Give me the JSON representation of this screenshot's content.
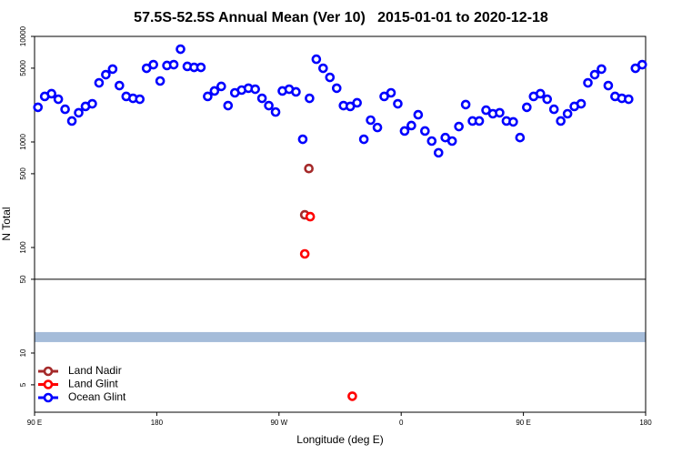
{
  "chart_data": {
    "type": "scatter",
    "title": "57.5S-52.5S Annual Mean (Ver 10)   2015-01-01 to 2020-12-18",
    "xlabel": "Longitude (deg E)",
    "ylabel": "N Total",
    "log_y": true,
    "xlim": [
      90,
      540
    ],
    "ylim": [
      2.75,
      10000
    ],
    "xticks": [
      {
        "value": 90,
        "label": "90 E"
      },
      {
        "value": 180,
        "label": "180"
      },
      {
        "value": 270,
        "label": "90 W"
      },
      {
        "value": 360,
        "label": "0"
      },
      {
        "value": 450,
        "label": "90 E"
      },
      {
        "value": 540,
        "label": "180"
      }
    ],
    "yticks": [
      5,
      10,
      50,
      100,
      500,
      1000,
      5000,
      10000
    ],
    "hline": 50,
    "band": [
      12.7,
      15.8
    ],
    "band_color": "#a5bcd9",
    "legend": "lower left",
    "series": [
      {
        "name": "Land Nadir",
        "color": "#a52a2a",
        "x": [
          292,
          289
        ],
        "values": [
          560,
          204
        ]
      },
      {
        "name": "Land Glint",
        "color": "#ff0000",
        "x": [
          293,
          289,
          324
        ],
        "values": [
          196,
          87,
          3.9
        ]
      },
      {
        "name": "Ocean Glint",
        "color": "#0000ff",
        "x": [
          92.5,
          97.5,
          102.5,
          107.5,
          112.5,
          117.5,
          122.5,
          127.5,
          132.5,
          137.5,
          142.5,
          147.5,
          152.5,
          157.5,
          162.5,
          167.5,
          172.5,
          177.5,
          182.5,
          187.5,
          192.5,
          197.5,
          202.5,
          207.5,
          212.5,
          217.5,
          222.5,
          227.5,
          232.5,
          237.5,
          242.5,
          247.5,
          252.5,
          257.5,
          262.5,
          267.5,
          272.5,
          277.5,
          282.5,
          287.5,
          292.5,
          297.5,
          302.5,
          307.5,
          312.5,
          317.5,
          322.5,
          327.5,
          332.5,
          337.5,
          342.5,
          347.5,
          352.5,
          357.5,
          362.5,
          367.5,
          372.5,
          377.5,
          382.5,
          387.5,
          392.5,
          397.5,
          402.5,
          407.5,
          412.5,
          417.5,
          422.5,
          427.5,
          432.5,
          437.5,
          442.5,
          447.5,
          452.5,
          457.5,
          462.5,
          467.5,
          472.5,
          477.5,
          482.5,
          487.5,
          492.5,
          497.5,
          502.5,
          507.5,
          512.5,
          517.5,
          522.5,
          527.5,
          532.5,
          537.5
        ],
        "values": [
          2130,
          2700,
          2865,
          2540,
          2040,
          1580,
          1890,
          2170,
          2300,
          3630,
          4340,
          4900,
          3420,
          2700,
          2590,
          2540,
          4990,
          5400,
          3780,
          5300,
          5400,
          7570,
          5200,
          5090,
          5090,
          2700,
          3040,
          3360,
          2210,
          2920,
          3100,
          3230,
          3160,
          2590,
          2210,
          1920,
          3040,
          3160,
          2980,
          1060,
          2590,
          6080,
          4990,
          4090,
          3230,
          2210,
          2170,
          2350,
          1060,
          1610,
          1370,
          2700,
          2920,
          2300,
          1270,
          1430,
          1810,
          1270,
          1020,
          790,
          1100,
          1020,
          1400,
          2260,
          1580,
          1580,
          2000,
          1850,
          1890,
          1580,
          1550,
          1100,
          2130,
          2700,
          2865,
          2540,
          2040,
          1580,
          1850,
          2170,
          2300,
          3630,
          4340,
          4900,
          3420,
          2700,
          2590,
          2540,
          4990,
          5400
        ]
      }
    ]
  }
}
